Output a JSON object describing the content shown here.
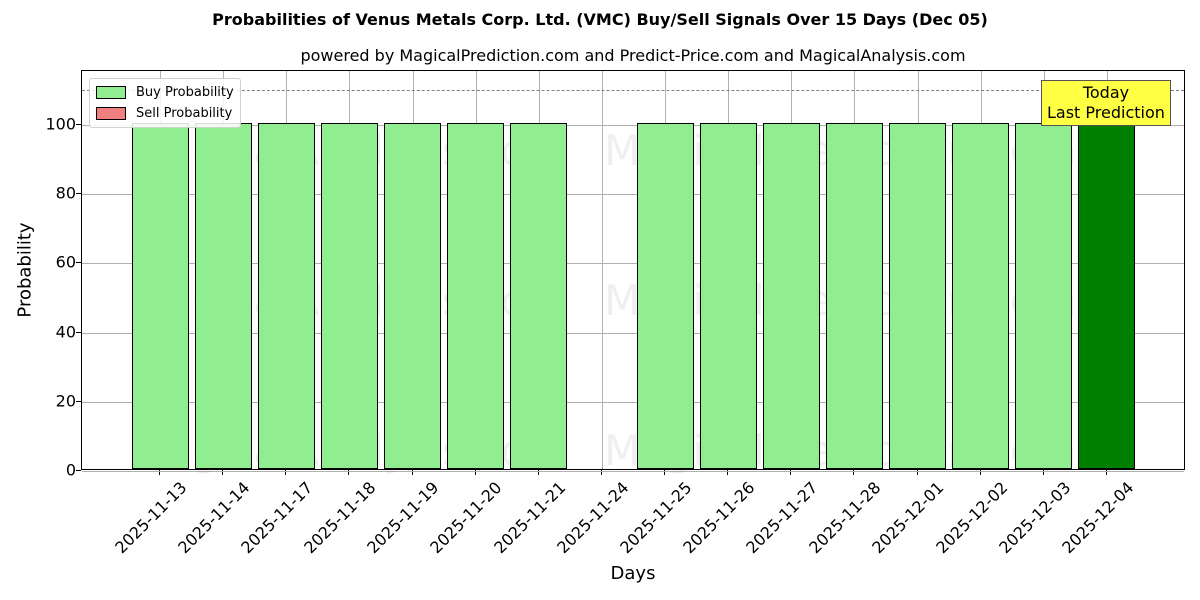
{
  "header": {
    "title": "Probabilities of Venus Metals Corp. Ltd. (VMC) Buy/Sell Signals Over 15 Days (Dec 05)",
    "subtitle": "powered by MagicalPrediction.com and Predict-Price.com and MagicalAnalysis.com"
  },
  "axes": {
    "xlabel": "Days",
    "ylabel": "Probability",
    "yticks": [
      "0",
      "20",
      "40",
      "60",
      "80",
      "100"
    ]
  },
  "legend": {
    "buy_label": "Buy Probability",
    "sell_label": "Sell Probability"
  },
  "annotation": {
    "line1": "Today",
    "line2": "Last Prediction"
  },
  "watermarks": [
    "MagicalAnalysis.com",
    "MagicalPrediction.com"
  ],
  "colors": {
    "buy": "#90ee90",
    "sell": "#f08080",
    "today": "#008000",
    "annotation_bg": "#ffff44"
  },
  "chart_data": {
    "type": "bar",
    "title": "Probabilities of Venus Metals Corp. Ltd. (VMC) Buy/Sell Signals Over 15 Days (Dec 05)",
    "subtitle": "powered by MagicalPrediction.com and Predict-Price.com and MagicalAnalysis.com",
    "xlabel": "Days",
    "ylabel": "Probability",
    "ylim": [
      0,
      115
    ],
    "grid": true,
    "legend_position": "upper left",
    "threshold_line": 110,
    "categories": [
      "2025-11-13",
      "2025-11-14",
      "2025-11-17",
      "2025-11-18",
      "2025-11-19",
      "2025-11-20",
      "2025-11-21",
      "2025-11-24",
      "2025-11-25",
      "2025-11-26",
      "2025-11-27",
      "2025-11-28",
      "2025-12-01",
      "2025-12-02",
      "2025-12-03",
      "2025-12-04"
    ],
    "series": [
      {
        "name": "Buy Probability",
        "values": [
          100,
          100,
          100,
          100,
          100,
          100,
          100,
          0,
          100,
          100,
          100,
          100,
          100,
          100,
          100,
          100
        ]
      },
      {
        "name": "Sell Probability",
        "values": [
          0,
          0,
          0,
          0,
          0,
          0,
          0,
          0,
          0,
          0,
          0,
          0,
          0,
          0,
          0,
          0
        ]
      }
    ],
    "annotations": [
      {
        "text": "Today\nLast Prediction",
        "x": "2025-12-04"
      }
    ]
  }
}
